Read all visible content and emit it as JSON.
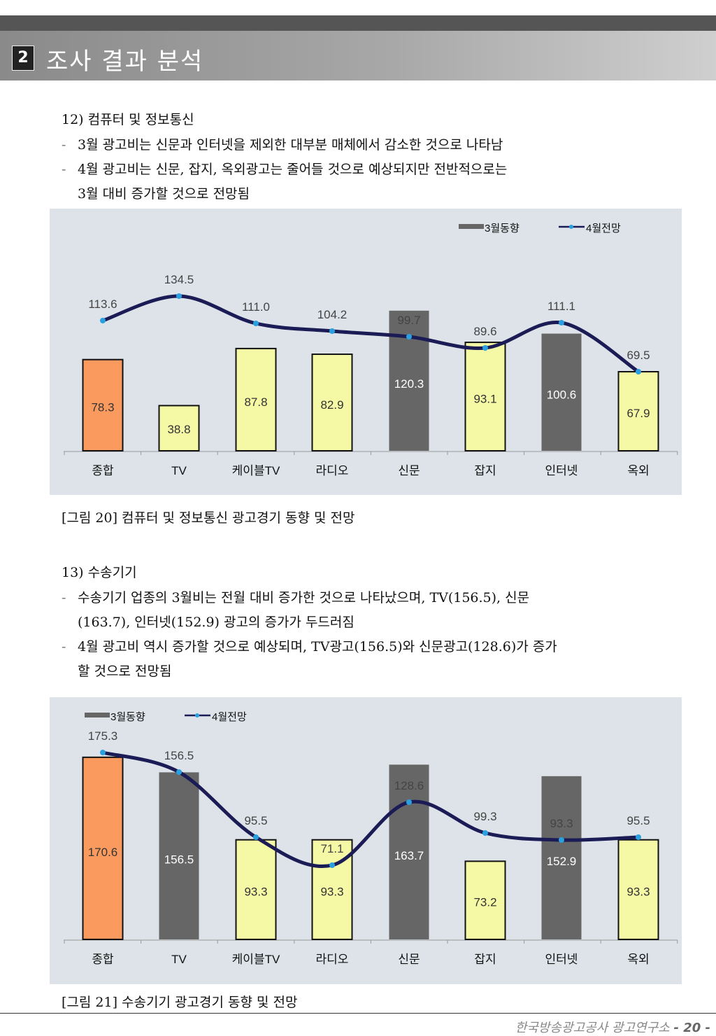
{
  "section": {
    "number": "2",
    "title": "조사 결과 분석"
  },
  "sec12": {
    "heading": "12) 컴퓨터 및 정보통신",
    "bullet1": "3월 광고비는 신문과 인터넷을 제외한 대부분 매체에서 감소한 것으로 나타남",
    "bullet2a": "4월 광고비는 신문, 잡지, 옥외광고는 줄어들 것으로 예상되지만 전반적으로는",
    "bullet2b": "3월 대비 증가할 것으로 전망됨",
    "caption": "[그림 20] 컴퓨터 및 정보통신 광고경기 동향 및 전망"
  },
  "sec13": {
    "heading": "13) 수송기기",
    "bullet1a": "수송기기 업종의 3월비는 전월 대비 증가한 것으로 나타났으며, TV(156.5), 신문",
    "bullet1b": "(163.7), 인터넷(152.9) 광고의 증가가 두드러짐",
    "bullet2a": "4월 광고비 역시 증가할 것으로 예상되며, TV광고(156.5)와 신문광고(128.6)가 증가",
    "bullet2b": "할 것으로 전망됨",
    "caption": "[그림 21] 수송기기 광고경기 동향 및 전망"
  },
  "dash": "-",
  "chart_data": [
    {
      "type": "bar",
      "categories": [
        "종합",
        "TV",
        "케이블TV",
        "라디오",
        "신문",
        "잡지",
        "인터넷",
        "옥외"
      ],
      "series": [
        {
          "name": "3월동향",
          "type": "bar",
          "values": [
            78.3,
            38.8,
            87.8,
            82.9,
            120.3,
            93.1,
            100.6,
            67.9
          ]
        },
        {
          "name": "4월전망",
          "type": "line",
          "values": [
            113.6,
            134.5,
            111.0,
            104.2,
            99.7,
            89.6,
            111.1,
            69.5
          ]
        }
      ],
      "bar_labels": [
        "78.3",
        "38.8",
        "87.8",
        "82.9",
        "120.3",
        "93.1",
        "100.6",
        "67.9"
      ],
      "line_labels": [
        "113.6",
        "134.5",
        "111.0",
        "104.2",
        "99.7",
        "89.6",
        "111.1",
        "69.5"
      ],
      "legend_position": "top-right",
      "colors": {
        "total": "#fb9a5e",
        "dark": "#666666",
        "light": "#f5f9a6",
        "line": "#1b1b55",
        "dot": "#2aa0e0"
      },
      "bar_color_keys": [
        "total",
        "light",
        "light",
        "light",
        "dark",
        "light",
        "dark",
        "light"
      ]
    },
    {
      "type": "bar",
      "categories": [
        "종합",
        "TV",
        "케이블TV",
        "라디오",
        "신문",
        "잡지",
        "인터넷",
        "옥외"
      ],
      "series": [
        {
          "name": "3월동향",
          "type": "bar",
          "values": [
            170.6,
            156.5,
            93.3,
            93.3,
            163.7,
            73.2,
            152.9,
            93.3
          ]
        },
        {
          "name": "4월전망",
          "type": "line",
          "values": [
            175.3,
            156.5,
            95.5,
            71.1,
            128.6,
            99.3,
            93.3,
            95.5
          ]
        }
      ],
      "bar_labels": [
        "170.6",
        "156.5",
        "93.3",
        "93.3",
        "163.7",
        "73.2",
        "152.9",
        "93.3"
      ],
      "line_labels": [
        "175.3",
        "156.5",
        "95.5",
        "71.1",
        "128.6",
        "99.3",
        "93.3",
        "95.5"
      ],
      "legend_position": "top-left",
      "colors": {
        "total": "#fb9a5e",
        "dark": "#666666",
        "light": "#f5f9a6",
        "line": "#1b1b55",
        "dot": "#2aa0e0"
      },
      "bar_color_keys": [
        "total",
        "dark",
        "light",
        "light",
        "dark",
        "light",
        "dark",
        "light"
      ]
    }
  ],
  "footer": {
    "org": "한국방송광고공사 광고연구소",
    "page": "- 20 -"
  }
}
